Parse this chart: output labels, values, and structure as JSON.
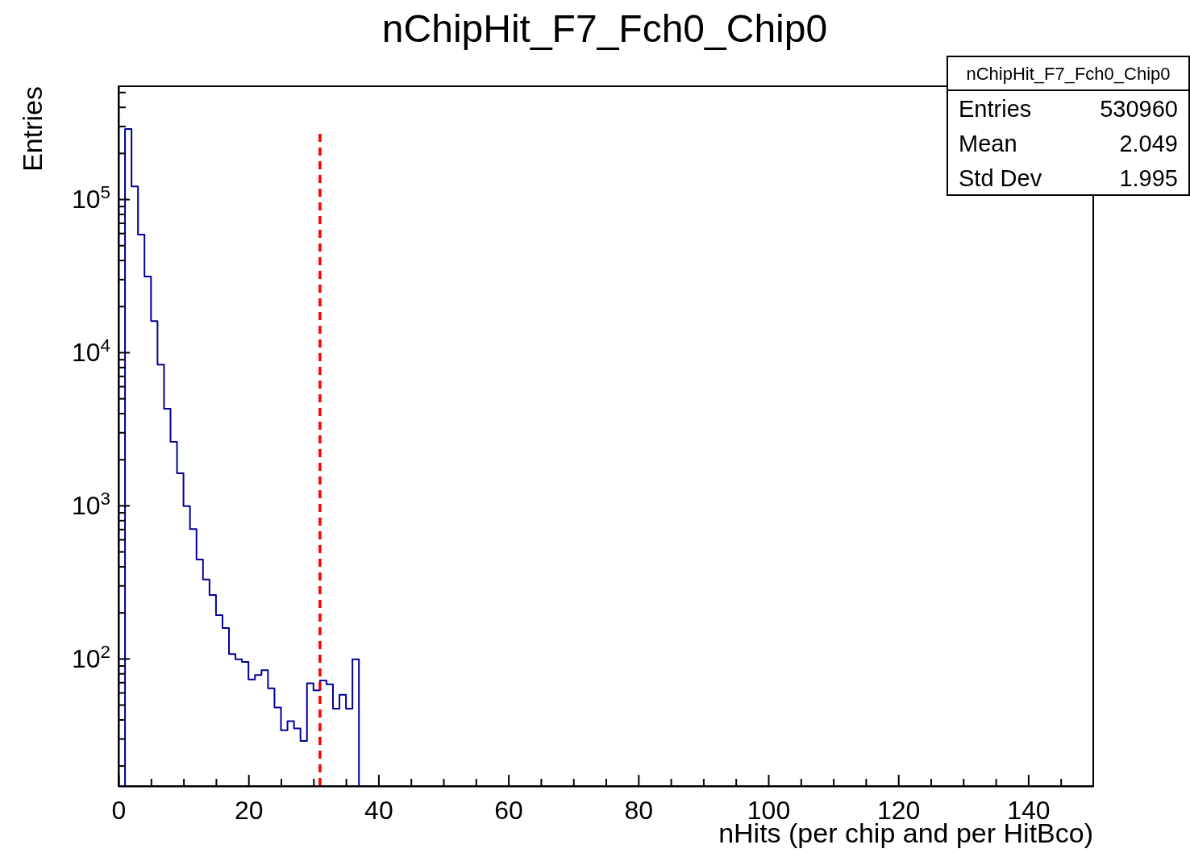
{
  "chart_data": {
    "type": "histogram",
    "title": "nChipHit_F7_Fch0_Chip0",
    "xlabel": "nHits (per chip and per HitBco)",
    "ylabel": "Entries",
    "log": "y",
    "grid": false,
    "legend": false,
    "bins": [
      1,
      2,
      3,
      4,
      5,
      6,
      7,
      8,
      9,
      10,
      11,
      12,
      13,
      14,
      15,
      16,
      17,
      18,
      19,
      20,
      21,
      22,
      23,
      24,
      25,
      26,
      27,
      28,
      29,
      30,
      31,
      32,
      33,
      34,
      35,
      36,
      37
    ],
    "values": [
      287000,
      121000,
      58700,
      31200,
      16000,
      8300,
      4280,
      2600,
      1620,
      990,
      700,
      444,
      328,
      260,
      192,
      158,
      107,
      99,
      95,
      73,
      78,
      84,
      64,
      48,
      34,
      39,
      35,
      29,
      69,
      62,
      72,
      68,
      47,
      58,
      47,
      99
    ],
    "color": "#000099",
    "xlim": [
      0,
      150
    ],
    "xticks": [
      0,
      {
        "value": 5,
        "label": null
      },
      {
        "value": 10,
        "label": null
      },
      {
        "value": 15,
        "label": null
      },
      20,
      {
        "value": 25,
        "label": null
      },
      {
        "value": 30,
        "label": null
      },
      {
        "value": 35,
        "label": null
      },
      40,
      {
        "value": 45,
        "label": null
      },
      {
        "value": 50,
        "label": null
      },
      {
        "value": 55,
        "label": null
      },
      60,
      {
        "value": 65,
        "label": null
      },
      {
        "value": 70,
        "label": null
      },
      {
        "value": 75,
        "label": null
      },
      80,
      {
        "value": 85,
        "label": null
      },
      {
        "value": 90,
        "label": null
      },
      {
        "value": 95,
        "label": null
      },
      100,
      {
        "value": 105,
        "label": null
      },
      {
        "value": 110,
        "label": null
      },
      {
        "value": 115,
        "label": null
      },
      120,
      {
        "value": 125,
        "label": null
      },
      {
        "value": 130,
        "label": null
      },
      {
        "value": 135,
        "label": null
      },
      140,
      {
        "value": 145,
        "label": null
      }
    ],
    "ylim": [
      14.7,
      546000
    ],
    "yticks": [
      {
        "value": 20,
        "label": null
      },
      {
        "value": 30,
        "label": null
      },
      {
        "value": 40,
        "label": null
      },
      {
        "value": 50,
        "label": null
      },
      {
        "value": 60,
        "label": null
      },
      {
        "value": 70,
        "label": null
      },
      {
        "value": 80,
        "label": null
      },
      {
        "value": 90,
        "label": null
      },
      {
        "value": 100,
        "label": "10$^{2}$"
      },
      {
        "value": 200,
        "label": null
      },
      {
        "value": 300,
        "label": null
      },
      {
        "value": 400,
        "label": null
      },
      {
        "value": 500,
        "label": null
      },
      {
        "value": 600,
        "label": null
      },
      {
        "value": 700,
        "label": null
      },
      {
        "value": 800,
        "label": null
      },
      {
        "value": 900,
        "label": null
      },
      {
        "value": 1000,
        "label": "10$^{3}$"
      },
      {
        "value": 2000,
        "label": null
      },
      {
        "value": 3000,
        "label": null
      },
      {
        "value": 4000,
        "label": null
      },
      {
        "value": 5000,
        "label": null
      },
      {
        "value": 6000,
        "label": null
      },
      {
        "value": 7000,
        "label": null
      },
      {
        "value": 8000,
        "label": null
      },
      {
        "value": 9000,
        "label": null
      },
      {
        "value": 10000,
        "label": "10$^{4}$"
      },
      {
        "value": 20000,
        "label": null
      },
      {
        "value": 30000,
        "label": null
      },
      {
        "value": 40000,
        "label": null
      },
      {
        "value": 50000,
        "label": null
      },
      {
        "value": 60000,
        "label": null
      },
      {
        "value": 70000,
        "label": null
      },
      {
        "value": 80000,
        "label": null
      },
      {
        "value": 90000,
        "label": null
      },
      {
        "value": 100000,
        "label": "10$^{5}$"
      },
      {
        "value": 200000,
        "label": null
      },
      {
        "value": 300000,
        "label": null
      },
      {
        "value": 400000,
        "label": null
      },
      {
        "value": 500000,
        "label": null
      }
    ],
    "ref_lines": [
      {
        "axis": "x",
        "value": 31,
        "color": "#ff0000",
        "line_style": "dashed"
      }
    ],
    "annotations": [
      "nChipHit_F7_Fch0_Chip0",
      "Entries",
      "530960",
      "Mean",
      "2.049",
      "Std Dev",
      "1.995"
    ]
  }
}
